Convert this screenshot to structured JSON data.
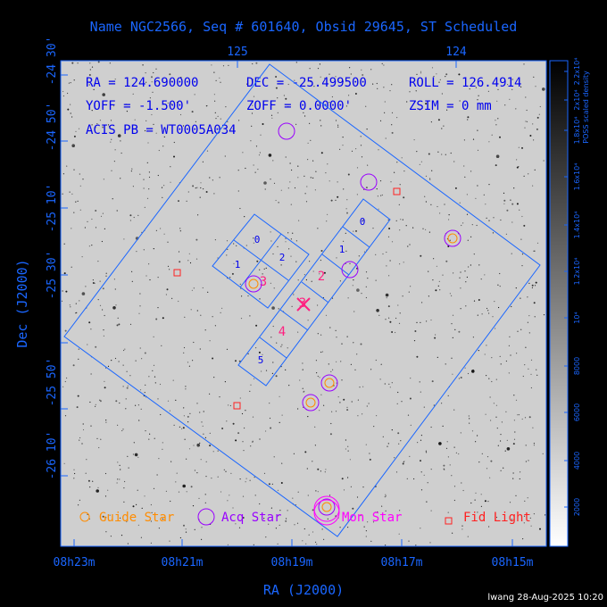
{
  "title": "Name NGC2566, Seq # 601640, Obsid 29645, ST Scheduled",
  "header": {
    "ra": "RA = 124.690000",
    "dec": "DEC = -25.499500",
    "roll": "ROLL = 126.4914",
    "yoff": "YOFF = -1.500'",
    "zoff": "ZOFF = 0.0000'",
    "zsim": "ZSIM = 0 mm",
    "acis_pb": "ACIS PB = WT0005A034"
  },
  "axes": {
    "xlabel": "RA (J2000)",
    "ylabel": "Dec (J2000)",
    "x_ticks": [
      "08h23m",
      "08h21m",
      "08h19m",
      "08h17m",
      "08h15m"
    ],
    "y_ticks": [
      "-24 30'",
      "-24 50'",
      "-25 10'",
      "-25 30'",
      "-25 50'",
      "-26 10'"
    ],
    "top_ticks": [
      "125",
      "124"
    ]
  },
  "colorbar": {
    "label": "POSS scaled density",
    "ticks": [
      "2000",
      "4000",
      "6000",
      "8000",
      "10⁴",
      "1.2x10⁴",
      "1.4x10⁴",
      "1.6x10⁴",
      "1.8x10⁴",
      "2x10⁴",
      "2.2x10⁴"
    ]
  },
  "ccds": {
    "i_array": [
      "0",
      "1",
      "2",
      "3"
    ],
    "s_array": [
      "0",
      "1",
      "2",
      "3",
      "4",
      "5"
    ]
  },
  "legend": {
    "guide": "Guide Star",
    "acq": "Acq Star",
    "mon": "Mon Star",
    "fid": "Fid Light"
  },
  "footer": "lwang 28-Aug-2025 10:20",
  "colors": {
    "frame": "#1a66ff",
    "guide": "#ff8c00",
    "acq": "#9900ff",
    "mon": "#ff00ff",
    "fid": "#ff2020",
    "aim": "#ff2080"
  }
}
